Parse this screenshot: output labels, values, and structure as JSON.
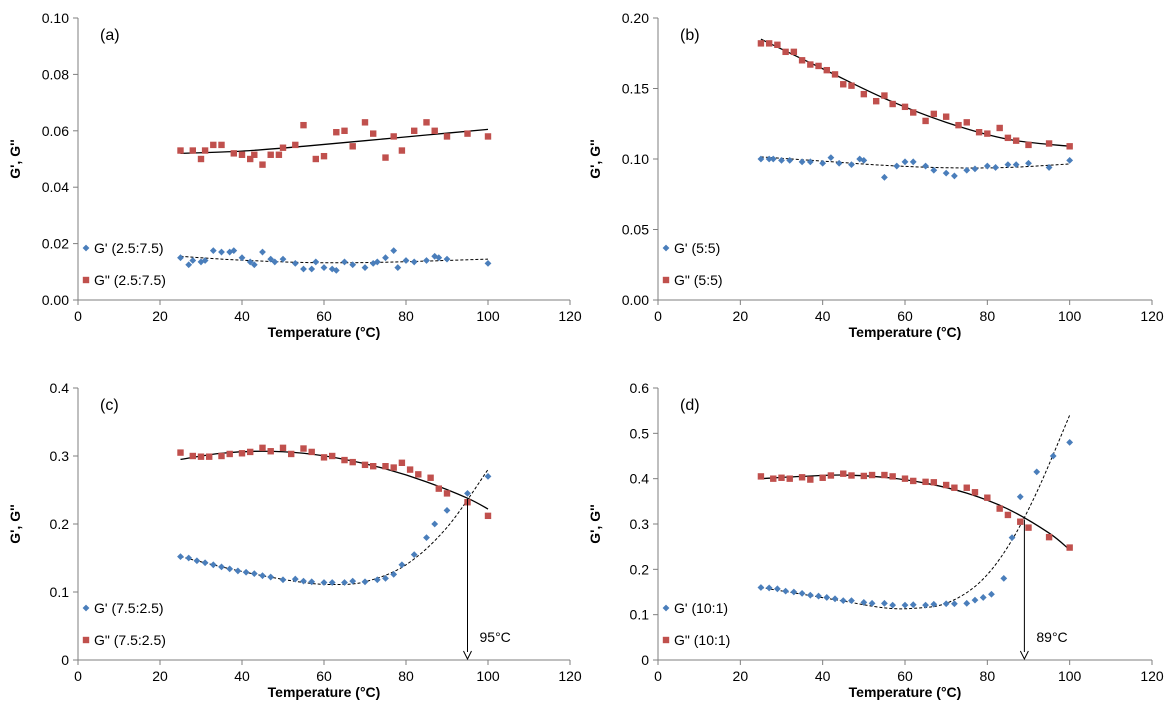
{
  "colors": {
    "g_prime": "#4A7EBB",
    "g_double_prime": "#C0504D",
    "axis": "#7f7f7f",
    "fit": "#000000"
  },
  "chart_data": [
    {
      "panel_label": "(a)",
      "type": "scatter",
      "xlabel": "Temperature (°C)",
      "ylabel": "G', G''",
      "xlim": [
        0,
        120
      ],
      "ylim": [
        0,
        0.1
      ],
      "xticks": [
        0,
        20,
        40,
        60,
        80,
        100,
        120
      ],
      "yticks": [
        0,
        0.02,
        0.04,
        0.06,
        0.08,
        0.1
      ],
      "xtick_labels": [
        "0",
        "20",
        "40",
        "60",
        "80",
        "100",
        "120"
      ],
      "ytick_labels": [
        "0.00",
        "0.02",
        "0.04",
        "0.06",
        "0.08",
        "0.10"
      ],
      "legend_position": "bottom-left",
      "series": [
        {
          "name": "G' (2.5:7.5)",
          "key": "g_prime",
          "marker": "diamond",
          "x": [
            25,
            27,
            28,
            30,
            31,
            33,
            35,
            37,
            38,
            40,
            42,
            43,
            45,
            47,
            48,
            50,
            53,
            55,
            57,
            58,
            60,
            62,
            63,
            65,
            67,
            70,
            72,
            73,
            75,
            77,
            78,
            80,
            82,
            85,
            87,
            88,
            90,
            100
          ],
          "y": [
            0.015,
            0.0125,
            0.014,
            0.0135,
            0.014,
            0.0175,
            0.017,
            0.017,
            0.0175,
            0.015,
            0.0135,
            0.0125,
            0.017,
            0.0145,
            0.0135,
            0.0145,
            0.013,
            0.011,
            0.011,
            0.0135,
            0.0115,
            0.011,
            0.0105,
            0.0135,
            0.0125,
            0.0115,
            0.013,
            0.0135,
            0.015,
            0.0175,
            0.0115,
            0.014,
            0.0135,
            0.014,
            0.0155,
            0.015,
            0.0145,
            0.013
          ]
        },
        {
          "name": "G\" (2.5:7.5)",
          "key": "g_double_prime",
          "marker": "square",
          "x": [
            25,
            28,
            30,
            31,
            33,
            35,
            38,
            40,
            42,
            43,
            45,
            47,
            49,
            50,
            53,
            55,
            58,
            60,
            63,
            65,
            67,
            70,
            72,
            75,
            77,
            79,
            82,
            85,
            87,
            90,
            95,
            100
          ],
          "y": [
            0.053,
            0.053,
            0.05,
            0.053,
            0.055,
            0.055,
            0.052,
            0.0515,
            0.05,
            0.0515,
            0.048,
            0.0515,
            0.0515,
            0.054,
            0.055,
            0.062,
            0.05,
            0.051,
            0.0595,
            0.06,
            0.0545,
            0.063,
            0.059,
            0.0505,
            0.058,
            0.053,
            0.06,
            0.063,
            0.06,
            0.058,
            0.059,
            0.058
          ]
        }
      ],
      "fits": [
        {
          "key": "g_prime",
          "style": "dashed",
          "x": [
            25,
            35,
            45,
            55,
            65,
            75,
            85,
            100
          ],
          "y": [
            0.0155,
            0.0145,
            0.0138,
            0.0133,
            0.0132,
            0.0134,
            0.0138,
            0.0145
          ]
        },
        {
          "key": "g_double_prime",
          "style": "solid",
          "x": [
            25,
            40,
            55,
            70,
            85,
            100
          ],
          "y": [
            0.052,
            0.0528,
            0.0545,
            0.0565,
            0.0585,
            0.0605
          ]
        }
      ]
    },
    {
      "panel_label": "(b)",
      "type": "scatter",
      "xlabel": "Temperature (°C)",
      "ylabel": "G', G''",
      "xlim": [
        0,
        120
      ],
      "ylim": [
        0,
        0.2
      ],
      "xticks": [
        0,
        20,
        40,
        60,
        80,
        100,
        120
      ],
      "yticks": [
        0,
        0.05,
        0.1,
        0.15,
        0.2
      ],
      "xtick_labels": [
        "0",
        "20",
        "40",
        "60",
        "80",
        "100",
        "120"
      ],
      "ytick_labels": [
        "0.00",
        "0.05",
        "0.10",
        "0.15",
        "0.20"
      ],
      "legend_position": "bottom-left",
      "series": [
        {
          "name": "G' (5:5)",
          "key": "g_prime",
          "marker": "diamond",
          "x": [
            25,
            27,
            28,
            30,
            32,
            35,
            37,
            40,
            42,
            44,
            47,
            49,
            50,
            55,
            58,
            60,
            62,
            65,
            67,
            70,
            72,
            75,
            77,
            80,
            82,
            85,
            87,
            90,
            95,
            100
          ],
          "y": [
            0.1,
            0.1,
            0.1,
            0.099,
            0.099,
            0.098,
            0.098,
            0.097,
            0.101,
            0.097,
            0.096,
            0.1,
            0.099,
            0.087,
            0.095,
            0.098,
            0.098,
            0.095,
            0.092,
            0.09,
            0.088,
            0.092,
            0.093,
            0.095,
            0.094,
            0.096,
            0.096,
            0.097,
            0.094,
            0.099
          ]
        },
        {
          "name": "G\" (5:5)",
          "key": "g_double_prime",
          "marker": "square",
          "x": [
            25,
            27,
            29,
            31,
            33,
            35,
            37,
            39,
            41,
            43,
            45,
            47,
            50,
            53,
            55,
            57,
            60,
            62,
            65,
            67,
            70,
            73,
            75,
            78,
            80,
            83,
            85,
            87,
            90,
            95,
            100
          ],
          "y": [
            0.182,
            0.182,
            0.181,
            0.176,
            0.176,
            0.17,
            0.167,
            0.166,
            0.163,
            0.16,
            0.153,
            0.152,
            0.146,
            0.141,
            0.145,
            0.139,
            0.137,
            0.133,
            0.127,
            0.132,
            0.13,
            0.124,
            0.126,
            0.119,
            0.118,
            0.122,
            0.115,
            0.113,
            0.11,
            0.111,
            0.109
          ]
        }
      ],
      "fits": [
        {
          "key": "g_prime",
          "style": "dashed",
          "x": [
            25,
            40,
            55,
            70,
            85,
            100
          ],
          "y": [
            0.1015,
            0.0985,
            0.0955,
            0.0938,
            0.094,
            0.0965
          ]
        },
        {
          "key": "g_double_prime",
          "style": "solid",
          "x": [
            25,
            40,
            55,
            70,
            85,
            100
          ],
          "y": [
            0.185,
            0.164,
            0.143,
            0.126,
            0.114,
            0.109
          ]
        }
      ]
    },
    {
      "panel_label": "(c)",
      "type": "scatter",
      "xlabel": "Temperature (°C)",
      "ylabel": "G', G''",
      "xlim": [
        0,
        120
      ],
      "ylim": [
        0,
        0.4
      ],
      "xticks": [
        0,
        20,
        40,
        60,
        80,
        100,
        120
      ],
      "yticks": [
        0,
        0.1,
        0.2,
        0.3,
        0.4
      ],
      "xtick_labels": [
        "0",
        "20",
        "40",
        "60",
        "80",
        "100",
        "120"
      ],
      "ytick_labels": [
        "0",
        "0.1",
        "0.2",
        "0.3",
        "0.4"
      ],
      "legend_position": "bottom-left",
      "annotation": {
        "text": "95°C",
        "x": 95
      },
      "series": [
        {
          "name": "G' (7.5:2.5)",
          "key": "g_prime",
          "marker": "diamond",
          "x": [
            25,
            27,
            29,
            31,
            33,
            35,
            37,
            39,
            41,
            43,
            45,
            47,
            50,
            53,
            55,
            57,
            60,
            62,
            65,
            67,
            70,
            73,
            75,
            77,
            79,
            82,
            85,
            87,
            90,
            95,
            100
          ],
          "y": [
            0.152,
            0.15,
            0.146,
            0.143,
            0.14,
            0.137,
            0.134,
            0.131,
            0.129,
            0.127,
            0.124,
            0.122,
            0.118,
            0.119,
            0.116,
            0.115,
            0.114,
            0.114,
            0.114,
            0.116,
            0.115,
            0.118,
            0.12,
            0.126,
            0.14,
            0.155,
            0.18,
            0.2,
            0.22,
            0.245,
            0.27
          ]
        },
        {
          "name": "G\" (7.5:2.5)",
          "key": "g_double_prime",
          "marker": "square",
          "x": [
            25,
            28,
            30,
            32,
            35,
            37,
            40,
            42,
            45,
            47,
            50,
            52,
            55,
            57,
            60,
            62,
            65,
            67,
            70,
            72,
            75,
            77,
            79,
            81,
            83,
            86,
            88,
            90,
            95,
            100
          ],
          "y": [
            0.305,
            0.3,
            0.299,
            0.299,
            0.3,
            0.303,
            0.304,
            0.306,
            0.312,
            0.307,
            0.312,
            0.303,
            0.311,
            0.306,
            0.298,
            0.3,
            0.294,
            0.291,
            0.287,
            0.285,
            0.285,
            0.283,
            0.29,
            0.28,
            0.273,
            0.268,
            0.252,
            0.245,
            0.232,
            0.212
          ]
        }
      ],
      "fits": [
        {
          "key": "g_prime",
          "style": "dashed",
          "x": [
            25,
            35,
            45,
            55,
            62,
            70,
            80,
            90,
            100
          ],
          "y": [
            0.152,
            0.137,
            0.124,
            0.114,
            0.111,
            0.115,
            0.14,
            0.195,
            0.28
          ]
        },
        {
          "key": "g_double_prime",
          "style": "solid",
          "x": [
            25,
            35,
            45,
            55,
            65,
            75,
            85,
            95,
            100
          ],
          "y": [
            0.295,
            0.304,
            0.307,
            0.304,
            0.295,
            0.281,
            0.262,
            0.238,
            0.222
          ]
        }
      ]
    },
    {
      "panel_label": "(d)",
      "type": "scatter",
      "xlabel": "Temperature (°C)",
      "ylabel": "G', G''",
      "xlim": [
        0,
        120
      ],
      "ylim": [
        0,
        0.6
      ],
      "xticks": [
        0,
        20,
        40,
        60,
        80,
        100,
        120
      ],
      "yticks": [
        0,
        0.1,
        0.2,
        0.3,
        0.4,
        0.5,
        0.6
      ],
      "xtick_labels": [
        "0",
        "20",
        "40",
        "60",
        "80",
        "100",
        "120"
      ],
      "ytick_labels": [
        "0",
        "0.1",
        "0.2",
        "0.3",
        "0.4",
        "0.5",
        "0.6"
      ],
      "legend_position": "bottom-left",
      "annotation": {
        "text": "89°C",
        "x": 89
      },
      "series": [
        {
          "name": "G' (10:1)",
          "key": "g_prime",
          "marker": "diamond",
          "x": [
            25,
            27,
            29,
            31,
            33,
            35,
            37,
            39,
            41,
            43,
            45,
            47,
            50,
            52,
            55,
            57,
            60,
            62,
            65,
            67,
            70,
            72,
            75,
            77,
            79,
            81,
            84,
            86,
            88,
            92,
            96,
            100
          ],
          "y": [
            0.16,
            0.159,
            0.157,
            0.152,
            0.15,
            0.147,
            0.143,
            0.141,
            0.138,
            0.135,
            0.131,
            0.131,
            0.127,
            0.125,
            0.125,
            0.121,
            0.121,
            0.122,
            0.121,
            0.123,
            0.124,
            0.124,
            0.125,
            0.132,
            0.138,
            0.145,
            0.18,
            0.27,
            0.36,
            0.415,
            0.45,
            0.48
          ]
        },
        {
          "name": "G\" (10:1)",
          "key": "g_double_prime",
          "marker": "square",
          "x": [
            25,
            28,
            30,
            32,
            35,
            37,
            40,
            42,
            45,
            47,
            50,
            52,
            55,
            57,
            60,
            62,
            65,
            67,
            70,
            72,
            75,
            77,
            80,
            83,
            85,
            88,
            90,
            95,
            100
          ],
          "y": [
            0.405,
            0.4,
            0.402,
            0.4,
            0.403,
            0.398,
            0.402,
            0.407,
            0.411,
            0.407,
            0.406,
            0.408,
            0.408,
            0.405,
            0.4,
            0.395,
            0.393,
            0.392,
            0.386,
            0.38,
            0.38,
            0.37,
            0.358,
            0.334,
            0.32,
            0.305,
            0.292,
            0.271,
            0.248
          ]
        }
      ],
      "fits": [
        {
          "key": "g_prime",
          "style": "dashed",
          "x": [
            25,
            35,
            45,
            55,
            62,
            70,
            78,
            85,
            92,
            100
          ],
          "y": [
            0.16,
            0.145,
            0.13,
            0.115,
            0.114,
            0.125,
            0.17,
            0.25,
            0.37,
            0.54
          ]
        },
        {
          "key": "g_double_prime",
          "style": "solid",
          "x": [
            25,
            35,
            45,
            55,
            65,
            75,
            85,
            95,
            100
          ],
          "y": [
            0.4,
            0.405,
            0.408,
            0.403,
            0.39,
            0.368,
            0.333,
            0.28,
            0.243
          ]
        }
      ]
    }
  ]
}
